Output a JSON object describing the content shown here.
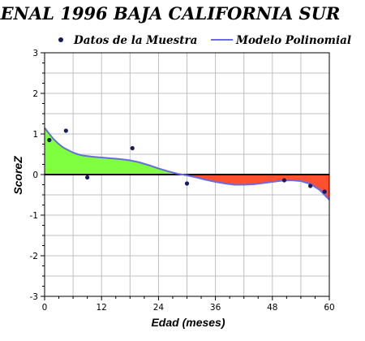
{
  "chart_data": {
    "type": "scatter",
    "title": "ENAL 1996 BAJA CALIFORNIA SUR",
    "xlabel": "Edad (meses)",
    "ylabel": "ScoreZ",
    "xlim": [
      0,
      60
    ],
    "ylim": [
      -3,
      3
    ],
    "x_ticks": [
      0,
      12,
      24,
      36,
      48,
      60
    ],
    "y_ticks": [
      -3,
      -2,
      -1,
      0,
      1,
      2,
      3
    ],
    "grid": true,
    "legend_position": "top",
    "colors": {
      "background": "#ffffff",
      "grid": "#c0c0c0",
      "points": "#1a1a5e",
      "model_line": "#6a6ae6",
      "positive_fill": "#80ff40",
      "negative_fill": "#ff5030",
      "zero_line": "#000000"
    },
    "series": [
      {
        "name": "Datos de la Muestra",
        "type": "scatter",
        "x": [
          1,
          4.5,
          9,
          18.5,
          30,
          50.5,
          56,
          59
        ],
        "y": [
          0.85,
          1.08,
          -0.07,
          0.65,
          -0.22,
          -0.14,
          -0.28,
          -0.42
        ]
      },
      {
        "name": "Modelo Polinomial",
        "type": "line",
        "x": [
          0,
          1,
          2,
          3,
          4,
          5,
          6,
          7,
          8,
          10,
          12,
          14,
          16,
          18,
          20,
          22,
          24,
          26,
          28,
          30,
          32,
          34,
          36,
          38,
          40,
          42,
          44,
          46,
          48,
          50,
          52,
          54,
          56,
          58,
          60
        ],
        "y": [
          1.15,
          1.0,
          0.86,
          0.75,
          0.66,
          0.6,
          0.54,
          0.5,
          0.47,
          0.44,
          0.42,
          0.4,
          0.38,
          0.35,
          0.3,
          0.23,
          0.15,
          0.08,
          0.02,
          -0.02,
          -0.07,
          -0.13,
          -0.18,
          -0.22,
          -0.25,
          -0.25,
          -0.24,
          -0.21,
          -0.18,
          -0.15,
          -0.14,
          -0.16,
          -0.23,
          -0.38,
          -0.62
        ]
      }
    ]
  }
}
